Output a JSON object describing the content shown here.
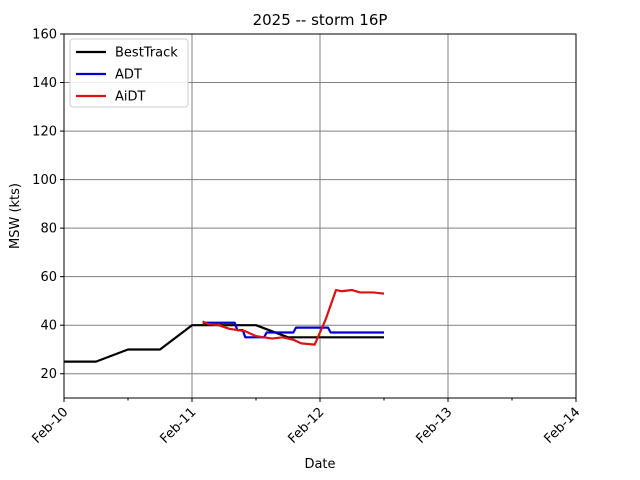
{
  "chart_data": {
    "type": "line",
    "title": "2025 -- storm 16P",
    "xlabel": "Date",
    "ylabel": "MSW (kts)",
    "xlim": [
      "2025-02-10",
      "2025-02-14"
    ],
    "ylim": [
      10,
      160
    ],
    "x_ticks": [
      {
        "date": "2025-02-10",
        "label": "Feb-10"
      },
      {
        "date": "2025-02-11",
        "label": "Feb-11"
      },
      {
        "date": "2025-02-12",
        "label": "Feb-12"
      },
      {
        "date": "2025-02-13",
        "label": "Feb-13"
      },
      {
        "date": "2025-02-14",
        "label": "Feb-14"
      }
    ],
    "x_minor_ticks": [
      "2025-02-10T12:00",
      "2025-02-11T12:00",
      "2025-02-12T12:00",
      "2025-02-13T12:00"
    ],
    "y_ticks": [
      20,
      40,
      60,
      80,
      100,
      120,
      140,
      160
    ],
    "grid": true,
    "legend_position": "top-left",
    "series": [
      {
        "name": "BestTrack",
        "color": "#000000",
        "points": [
          {
            "x": "2025-02-10T00:00",
            "y": 25
          },
          {
            "x": "2025-02-10T06:00",
            "y": 25
          },
          {
            "x": "2025-02-10T12:00",
            "y": 30
          },
          {
            "x": "2025-02-10T18:00",
            "y": 30
          },
          {
            "x": "2025-02-11T00:00",
            "y": 40
          },
          {
            "x": "2025-02-11T06:00",
            "y": 40
          },
          {
            "x": "2025-02-11T12:00",
            "y": 40
          },
          {
            "x": "2025-02-11T18:00",
            "y": 35
          },
          {
            "x": "2025-02-12T00:00",
            "y": 35
          },
          {
            "x": "2025-02-12T06:00",
            "y": 35
          },
          {
            "x": "2025-02-12T12:00",
            "y": 35
          }
        ]
      },
      {
        "name": "ADT",
        "color": "#0000cc",
        "points": [
          {
            "x": "2025-02-11T02:00",
            "y": 41
          },
          {
            "x": "2025-02-11T08:00",
            "y": 41
          },
          {
            "x": "2025-02-11T08:30",
            "y": 38
          },
          {
            "x": "2025-02-11T09:30",
            "y": 38
          },
          {
            "x": "2025-02-11T10:00",
            "y": 35
          },
          {
            "x": "2025-02-11T13:30",
            "y": 35
          },
          {
            "x": "2025-02-11T14:00",
            "y": 37
          },
          {
            "x": "2025-02-11T19:00",
            "y": 37
          },
          {
            "x": "2025-02-11T19:30",
            "y": 39
          },
          {
            "x": "2025-02-12T01:30",
            "y": 39
          },
          {
            "x": "2025-02-12T02:00",
            "y": 37
          },
          {
            "x": "2025-02-12T12:00",
            "y": 37
          }
        ]
      },
      {
        "name": "AiDT",
        "color": "#dd1111",
        "points": [
          {
            "x": "2025-02-11T02:00",
            "y": 41.5
          },
          {
            "x": "2025-02-11T03:00",
            "y": 40.5
          },
          {
            "x": "2025-02-11T05:00",
            "y": 40
          },
          {
            "x": "2025-02-11T07:00",
            "y": 38.5
          },
          {
            "x": "2025-02-11T10:00",
            "y": 37.5
          },
          {
            "x": "2025-02-11T12:00",
            "y": 35.5
          },
          {
            "x": "2025-02-11T15:00",
            "y": 34.5
          },
          {
            "x": "2025-02-11T17:00",
            "y": 35
          },
          {
            "x": "2025-02-11T19:00",
            "y": 34
          },
          {
            "x": "2025-02-11T20:30",
            "y": 32.5
          },
          {
            "x": "2025-02-11T23:00",
            "y": 32
          },
          {
            "x": "2025-02-12T01:00",
            "y": 42
          },
          {
            "x": "2025-02-12T03:00",
            "y": 54.5
          },
          {
            "x": "2025-02-12T04:00",
            "y": 54
          },
          {
            "x": "2025-02-12T06:00",
            "y": 54.5
          },
          {
            "x": "2025-02-12T07:30",
            "y": 53.5
          },
          {
            "x": "2025-02-12T10:00",
            "y": 53.5
          },
          {
            "x": "2025-02-12T12:00",
            "y": 53
          }
        ]
      }
    ]
  }
}
